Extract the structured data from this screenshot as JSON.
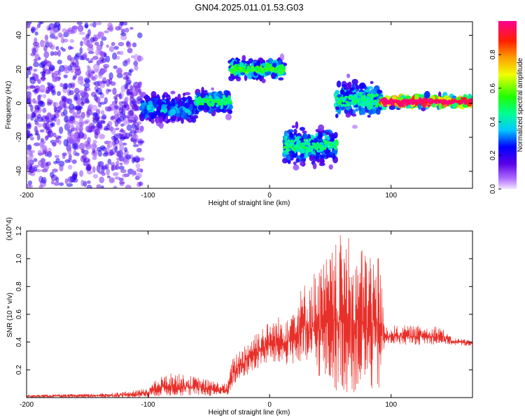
{
  "title": "GN04.2025.011.01.53.G03",
  "chart_data": [
    {
      "type": "heatmap",
      "xlabel": "Height of straight line (km)",
      "ylabel": "Frequency (Hz)",
      "xlim": [
        -200,
        167
      ],
      "ylim": [
        -50,
        48
      ],
      "x_ticks": [
        "-200",
        "-100",
        "0",
        "100"
      ],
      "y_ticks": [
        "-40",
        "-20",
        "0",
        "20",
        "40"
      ],
      "colorbar": {
        "label": "Normalized spectral amplitude",
        "range": [
          0,
          1
        ],
        "ticks": [
          "0.0",
          "0.2",
          "0.4",
          "0.6",
          "0.8"
        ]
      },
      "bands": [
        {
          "x_start": -200,
          "x_end": -105,
          "center_freq": -5,
          "spread": 45,
          "amplitude": 0.18
        },
        {
          "x_start": -105,
          "x_end": -60,
          "center_freq": -3,
          "spread": 8,
          "amplitude": 0.3
        },
        {
          "x_start": -60,
          "x_end": -32,
          "center_freq": 1,
          "spread": 6,
          "amplitude": 0.4
        },
        {
          "x_start": -32,
          "x_end": 12,
          "center_freq": 20,
          "spread": 5,
          "amplitude": 0.45
        },
        {
          "x_start": 12,
          "x_end": 55,
          "center_freq": -25,
          "spread": 10,
          "amplitude": 0.38
        },
        {
          "x_start": 55,
          "x_end": 92,
          "center_freq": 2,
          "spread": 10,
          "amplitude": 0.38
        },
        {
          "x_start": 92,
          "x_end": 167,
          "center_freq": 1,
          "spread": 3,
          "amplitude": 0.9
        }
      ]
    },
    {
      "type": "line",
      "xlabel": "Height of straight line (km)",
      "ylabel": "SNR (10 * v/v)",
      "y_multiplier": "(x10^4)",
      "xlim": [
        -200,
        167
      ],
      "ylim": [
        0,
        1.2
      ],
      "x_ticks": [
        "-200",
        "-100",
        "0",
        "100"
      ],
      "y_ticks": [
        "0.2",
        "0.4",
        "0.6",
        "0.8",
        "1.0",
        "1.2"
      ],
      "series_color": "#e8302a",
      "envelope": {
        "x": [
          -200,
          -140,
          -110,
          -100,
          -90,
          -80,
          -60,
          -35,
          -30,
          -20,
          -10,
          0,
          10,
          20,
          30,
          40,
          50,
          60,
          70,
          80,
          90,
          95,
          100,
          120,
          140,
          150,
          167
        ],
        "low": [
          0.0,
          0.0,
          0.0,
          0.0,
          0.01,
          0.01,
          0.01,
          0.01,
          0.08,
          0.15,
          0.2,
          0.25,
          0.22,
          0.24,
          0.2,
          0.15,
          0.06,
          0.03,
          0.03,
          0.04,
          0.03,
          0.38,
          0.38,
          0.38,
          0.38,
          0.38,
          0.37
        ],
        "high": [
          0.02,
          0.03,
          0.05,
          0.08,
          0.15,
          0.18,
          0.15,
          0.1,
          0.3,
          0.4,
          0.5,
          0.55,
          0.6,
          0.7,
          0.85,
          0.95,
          1.05,
          1.2,
          1.1,
          1.08,
          1.08,
          0.5,
          0.52,
          0.52,
          0.52,
          0.43,
          0.42
        ]
      }
    }
  ]
}
